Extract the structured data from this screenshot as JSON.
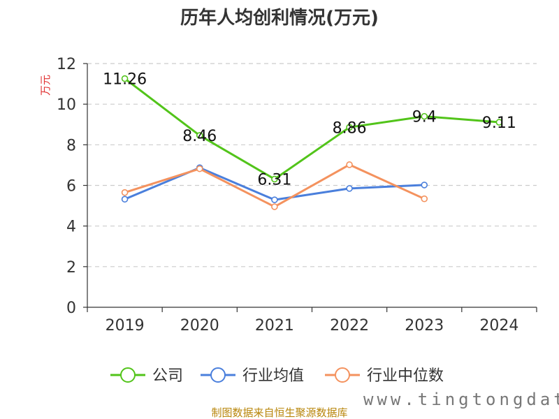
{
  "chart_data": {
    "type": "line",
    "title": "历年人均创利情况(万元)",
    "ylabel": "万元",
    "xlabel": "",
    "categories": [
      "2019",
      "2020",
      "2021",
      "2022",
      "2023",
      "2024"
    ],
    "ylim": [
      0,
      12
    ],
    "yticks": [
      0,
      2,
      4,
      6,
      8,
      10,
      12
    ],
    "grid": true,
    "legend_position": "bottom",
    "series": [
      {
        "name": "公司",
        "color": "#52c41a",
        "values": [
          11.26,
          8.46,
          6.31,
          8.86,
          9.4,
          9.11
        ],
        "labels": [
          "11.26",
          "8.46",
          "6.31",
          "8.86",
          "9.4",
          "9.11"
        ]
      },
      {
        "name": "行业均值",
        "color": "#4a7fdc",
        "values": [
          5.32,
          6.87,
          5.29,
          5.85,
          6.02,
          null
        ]
      },
      {
        "name": "行业中位数",
        "color": "#f4925e",
        "values": [
          5.65,
          6.82,
          4.95,
          7.02,
          5.34,
          null
        ]
      }
    ]
  },
  "footer": {
    "source": "制图数据来自恒生聚源数据库",
    "watermark": "www.tingtongdata.com"
  }
}
